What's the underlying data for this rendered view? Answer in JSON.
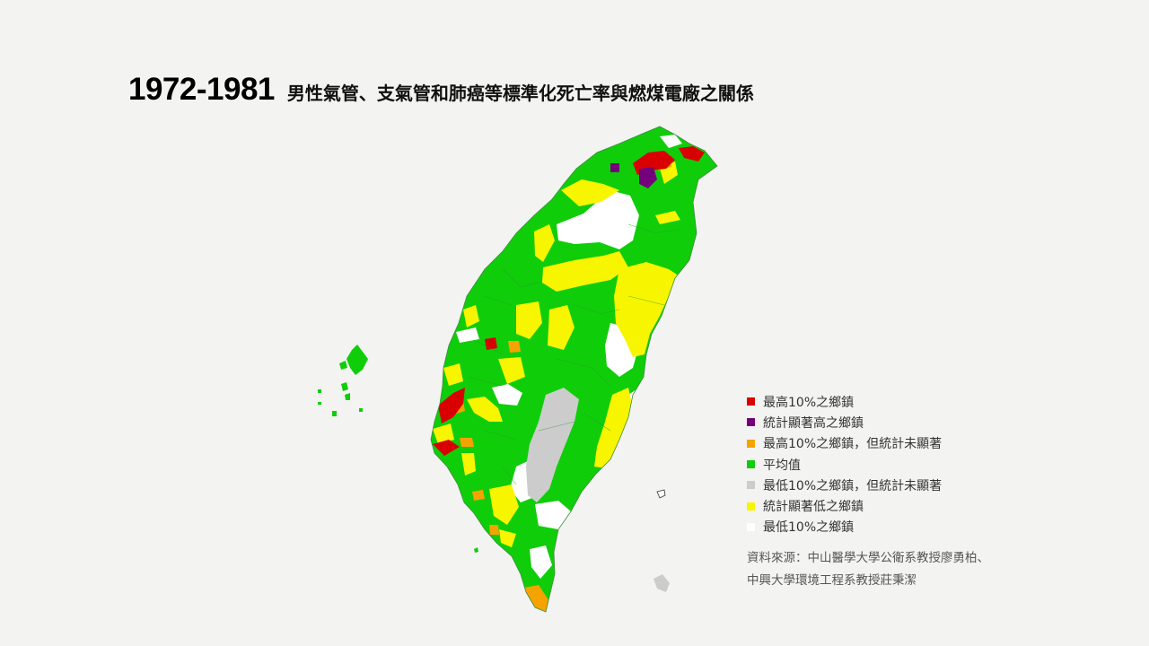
{
  "title": {
    "year_range": "1972-1981",
    "text": "男性氣管、支氣管和肺癌等標準化死亡率與燃煤電廠之關係"
  },
  "colors": {
    "top10": "#d80000",
    "sig_high": "#74007c",
    "top10_nonsig": "#f5a300",
    "average": "#10cd0a",
    "bottom10_nonsig": "#cccccc",
    "sig_low": "#f8f500",
    "bottom10": "#ffffff",
    "background": "#f3f3f1",
    "border": "#3c8d3c"
  },
  "legend": [
    {
      "label": "最高10%之鄉鎮",
      "color": "#d80000"
    },
    {
      "label": "統計顯著高之鄉鎮",
      "color": "#74007c"
    },
    {
      "label": "最高10%之鄉鎮，但統計未顯著",
      "color": "#f5a300"
    },
    {
      "label": "平均值",
      "color": "#10cd0a"
    },
    {
      "label": "最低10%之鄉鎮，但統計未顯著",
      "color": "#cccccc"
    },
    {
      "label": "統計顯著低之鄉鎮",
      "color": "#f8f500"
    },
    {
      "label": "最低10%之鄉鎮",
      "color": "#ffffff"
    }
  ],
  "source": {
    "line1": "資料來源：中山醫學大學公衛系教授廖勇柏、",
    "line2": "中興大學環境工程系教授莊秉潔"
  }
}
